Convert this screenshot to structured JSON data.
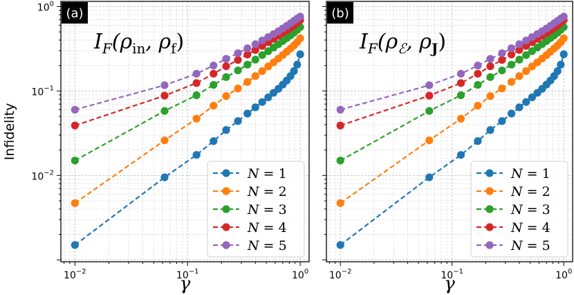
{
  "chart_data": [
    {
      "type": "line",
      "panel_tag": "(a)",
      "title": "",
      "annotation": {
        "prefix": "I",
        "sub1": "F",
        "body": "(ρ",
        "sub2": "in",
        "mid": ", ρ",
        "sub3": "f",
        "end": ")"
      },
      "xlabel": "γ",
      "ylabel": "Infidelity",
      "xscale": "log",
      "yscale": "log",
      "xlim": [
        0.0075,
        1.2
      ],
      "ylim": [
        0.00095,
        1.15
      ],
      "grid": true,
      "legend_position": "lower-right",
      "xticks": [
        {
          "base": "10",
          "exp": "−2",
          "value": 0.01
        },
        {
          "base": "10",
          "exp": "−1",
          "value": 0.1
        },
        {
          "base": "10",
          "exp": "0",
          "value": 1
        }
      ],
      "yticks": [
        {
          "base": "10",
          "exp": "−2",
          "value": 0.01
        },
        {
          "base": "10",
          "exp": "−1",
          "value": 0.1
        },
        {
          "base": "10",
          "exp": "0",
          "value": 1
        }
      ],
      "x": [
        0.01,
        0.0625,
        0.12,
        0.17,
        0.22,
        0.28,
        0.34,
        0.4,
        0.46,
        0.52,
        0.58,
        0.64,
        0.7,
        0.76,
        0.82,
        0.88,
        0.94,
        1.0
      ],
      "series": [
        {
          "name": "N = 1",
          "label_var": "N",
          "label_val": "= 1",
          "color": "#1f77b4",
          "values": [
            0.0015,
            0.0095,
            0.0175,
            0.0255,
            0.0345,
            0.044,
            0.054,
            0.064,
            0.074,
            0.084,
            0.095,
            0.106,
            0.119,
            0.133,
            0.15,
            0.172,
            0.205,
            0.272
          ]
        },
        {
          "name": "N = 2",
          "label_var": "N",
          "label_val": "= 2",
          "color": "#ff7f0e",
          "values": [
            0.0047,
            0.026,
            0.047,
            0.067,
            0.087,
            0.107,
            0.128,
            0.15,
            0.172,
            0.195,
            0.218,
            0.242,
            0.266,
            0.292,
            0.318,
            0.346,
            0.378,
            0.42
          ]
        },
        {
          "name": "N = 3",
          "label_var": "N",
          "label_val": "= 3",
          "color": "#2ca02c",
          "values": [
            0.015,
            0.058,
            0.089,
            0.118,
            0.146,
            0.175,
            0.205,
            0.235,
            0.266,
            0.296,
            0.327,
            0.358,
            0.39,
            0.422,
            0.455,
            0.49,
            0.53,
            0.57
          ]
        },
        {
          "name": "N = 4",
          "label_var": "N",
          "label_val": "= 4",
          "color": "#d62728",
          "values": [
            0.039,
            0.088,
            0.124,
            0.16,
            0.196,
            0.233,
            0.27,
            0.306,
            0.342,
            0.378,
            0.414,
            0.45,
            0.486,
            0.522,
            0.56,
            0.6,
            0.645,
            0.69
          ]
        },
        {
          "name": "N = 5",
          "label_var": "N",
          "label_val": "= 5",
          "color": "#9467bd",
          "values": [
            0.06,
            0.117,
            0.16,
            0.2,
            0.24,
            0.28,
            0.32,
            0.358,
            0.396,
            0.434,
            0.472,
            0.51,
            0.55,
            0.59,
            0.632,
            0.676,
            0.72,
            0.76
          ]
        }
      ]
    },
    {
      "type": "line",
      "panel_tag": "(b)",
      "title": "",
      "annotation": {
        "prefix": "I",
        "sub1": "F",
        "body": "(ρ",
        "sub2": "ℰ",
        "mid": ", ρ",
        "sub3": "J",
        "end": ")"
      },
      "xlabel": "γ",
      "ylabel": "",
      "xscale": "log",
      "yscale": "log",
      "xlim": [
        0.0075,
        1.2
      ],
      "ylim": [
        0.00095,
        1.15
      ],
      "grid": true,
      "legend_position": "lower-right",
      "xticks": [
        {
          "base": "10",
          "exp": "−2",
          "value": 0.01
        },
        {
          "base": "10",
          "exp": "−1",
          "value": 0.1
        },
        {
          "base": "10",
          "exp": "0",
          "value": 1
        }
      ],
      "yticks": [],
      "x": [
        0.01,
        0.0625,
        0.12,
        0.17,
        0.22,
        0.28,
        0.34,
        0.4,
        0.46,
        0.52,
        0.58,
        0.64,
        0.7,
        0.76,
        0.82,
        0.88,
        0.94,
        1.0
      ],
      "series": [
        {
          "name": "N = 1",
          "label_var": "N",
          "label_val": "= 1",
          "color": "#1f77b4",
          "values": [
            0.0015,
            0.0095,
            0.0175,
            0.0255,
            0.0345,
            0.044,
            0.054,
            0.064,
            0.074,
            0.084,
            0.095,
            0.106,
            0.119,
            0.133,
            0.15,
            0.172,
            0.205,
            0.272
          ]
        },
        {
          "name": "N = 2",
          "label_var": "N",
          "label_val": "= 2",
          "color": "#ff7f0e",
          "values": [
            0.0047,
            0.026,
            0.047,
            0.067,
            0.087,
            0.107,
            0.128,
            0.15,
            0.172,
            0.195,
            0.218,
            0.242,
            0.266,
            0.292,
            0.318,
            0.346,
            0.378,
            0.42
          ]
        },
        {
          "name": "N = 3",
          "label_var": "N",
          "label_val": "= 3",
          "color": "#2ca02c",
          "values": [
            0.015,
            0.058,
            0.089,
            0.118,
            0.146,
            0.175,
            0.205,
            0.235,
            0.266,
            0.296,
            0.327,
            0.358,
            0.39,
            0.422,
            0.455,
            0.49,
            0.53,
            0.57
          ]
        },
        {
          "name": "N = 4",
          "label_var": "N",
          "label_val": "= 4",
          "color": "#d62728",
          "values": [
            0.039,
            0.088,
            0.124,
            0.16,
            0.196,
            0.233,
            0.27,
            0.306,
            0.342,
            0.378,
            0.414,
            0.45,
            0.486,
            0.522,
            0.56,
            0.6,
            0.645,
            0.69
          ]
        },
        {
          "name": "N = 5",
          "label_var": "N",
          "label_val": "= 5",
          "color": "#9467bd",
          "values": [
            0.06,
            0.117,
            0.16,
            0.2,
            0.24,
            0.28,
            0.32,
            0.358,
            0.396,
            0.434,
            0.472,
            0.51,
            0.55,
            0.59,
            0.632,
            0.676,
            0.72,
            0.76
          ]
        }
      ]
    }
  ]
}
